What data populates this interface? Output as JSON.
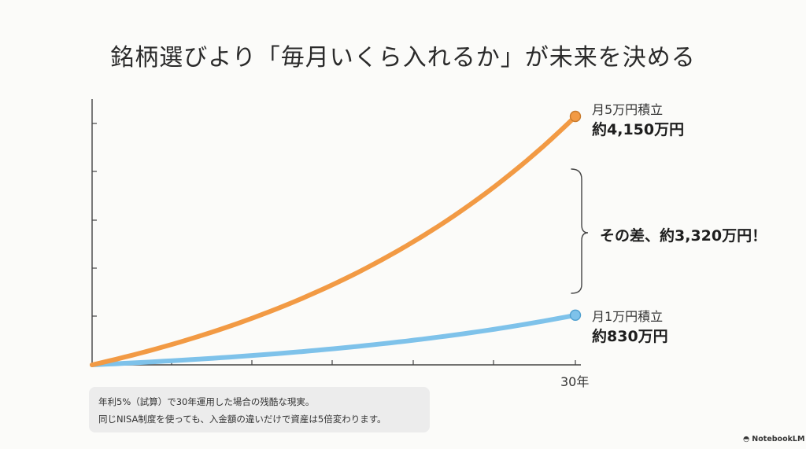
{
  "chart_data": {
    "type": "line",
    "title": "銘柄選びより「毎月いくら入れるか」が未来を決める",
    "xlabel": "",
    "ylabel": "",
    "xlim": [
      0,
      30
    ],
    "ylim": [
      0,
      5200
    ],
    "x_tick_label": "30年",
    "annual_rate": 0.05,
    "series": [
      {
        "name": "月5万円積立",
        "value_label": "約4,150万円",
        "color": "#f29a44",
        "monthly_man_yen": 5,
        "final_value_man_yen": 4150
      },
      {
        "name": "月1万円積立",
        "value_label": "約830万円",
        "color": "#7ec2ea",
        "monthly_man_yen": 1,
        "final_value_man_yen": 830
      }
    ],
    "annotation": "その差、約3,320万円！",
    "difference_man_yen": 3320
  },
  "caption": {
    "line1": "年利5%（試算）で30年運用した場合の残酷な現実。",
    "line2": "同じNISA制度を使っても、入金額の違いだけで資産は5倍変わります。"
  },
  "brand": "NotebookLM"
}
